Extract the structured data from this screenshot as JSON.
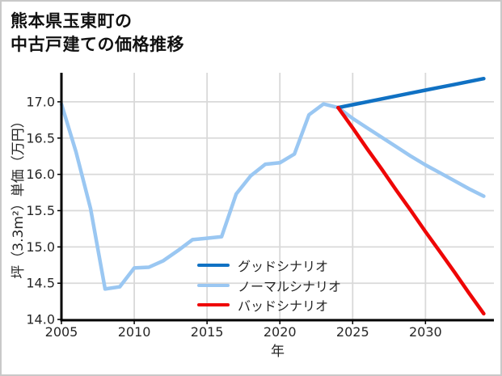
{
  "chart_data": {
    "type": "line",
    "title": "熊本県玉東町の\n中古戸建ての価格推移",
    "xlabel": "年",
    "ylabel": "坪（3.3m²）単価（万円）",
    "xlim": [
      2005,
      2034.7
    ],
    "ylim": [
      13.99,
      17.4
    ],
    "x_ticks": [
      2005,
      2010,
      2015,
      2020,
      2025,
      2030
    ],
    "y_ticks": [
      14.0,
      14.5,
      15.0,
      15.5,
      16.0,
      16.5,
      17.0
    ],
    "grid": true,
    "grid_color": "#d9d9d9",
    "axis_color": "#000000",
    "text_color": "#262626",
    "legend_position": "inside-lower-center",
    "series": [
      {
        "name": "グッドシナリオ",
        "color": "#1071c3",
        "x": [
          2024,
          2025,
          2026,
          2027,
          2028,
          2029,
          2030,
          2031,
          2032,
          2033,
          2034
        ],
        "y": [
          16.92,
          16.96,
          17.0,
          17.04,
          17.08,
          17.12,
          17.16,
          17.2,
          17.24,
          17.28,
          17.32
        ]
      },
      {
        "name": "ノーマルシナリオ",
        "color": "#9ac7f2",
        "x": [
          2005,
          2006,
          2007,
          2008,
          2009,
          2010,
          2011,
          2012,
          2013,
          2014,
          2015,
          2016,
          2017,
          2018,
          2019,
          2020,
          2021,
          2022,
          2023,
          2024,
          2025,
          2026,
          2027,
          2028,
          2029,
          2030,
          2031,
          2032,
          2033,
          2034
        ],
        "y": [
          16.97,
          16.31,
          15.53,
          14.42,
          14.45,
          14.71,
          14.72,
          14.81,
          14.95,
          15.1,
          15.12,
          15.14,
          15.73,
          15.98,
          16.14,
          16.16,
          16.28,
          16.82,
          16.97,
          16.92,
          16.77,
          16.64,
          16.51,
          16.38,
          16.25,
          16.13,
          16.02,
          15.91,
          15.8,
          15.7
        ]
      },
      {
        "name": "バッドシナリオ",
        "color": "#ee0606",
        "x": [
          2024,
          2025,
          2026,
          2027,
          2028,
          2029,
          2030,
          2031,
          2032,
          2033,
          2034
        ],
        "y": [
          16.92,
          16.64,
          16.35,
          16.07,
          15.78,
          15.5,
          15.21,
          14.93,
          14.65,
          14.36,
          14.08
        ]
      }
    ]
  }
}
